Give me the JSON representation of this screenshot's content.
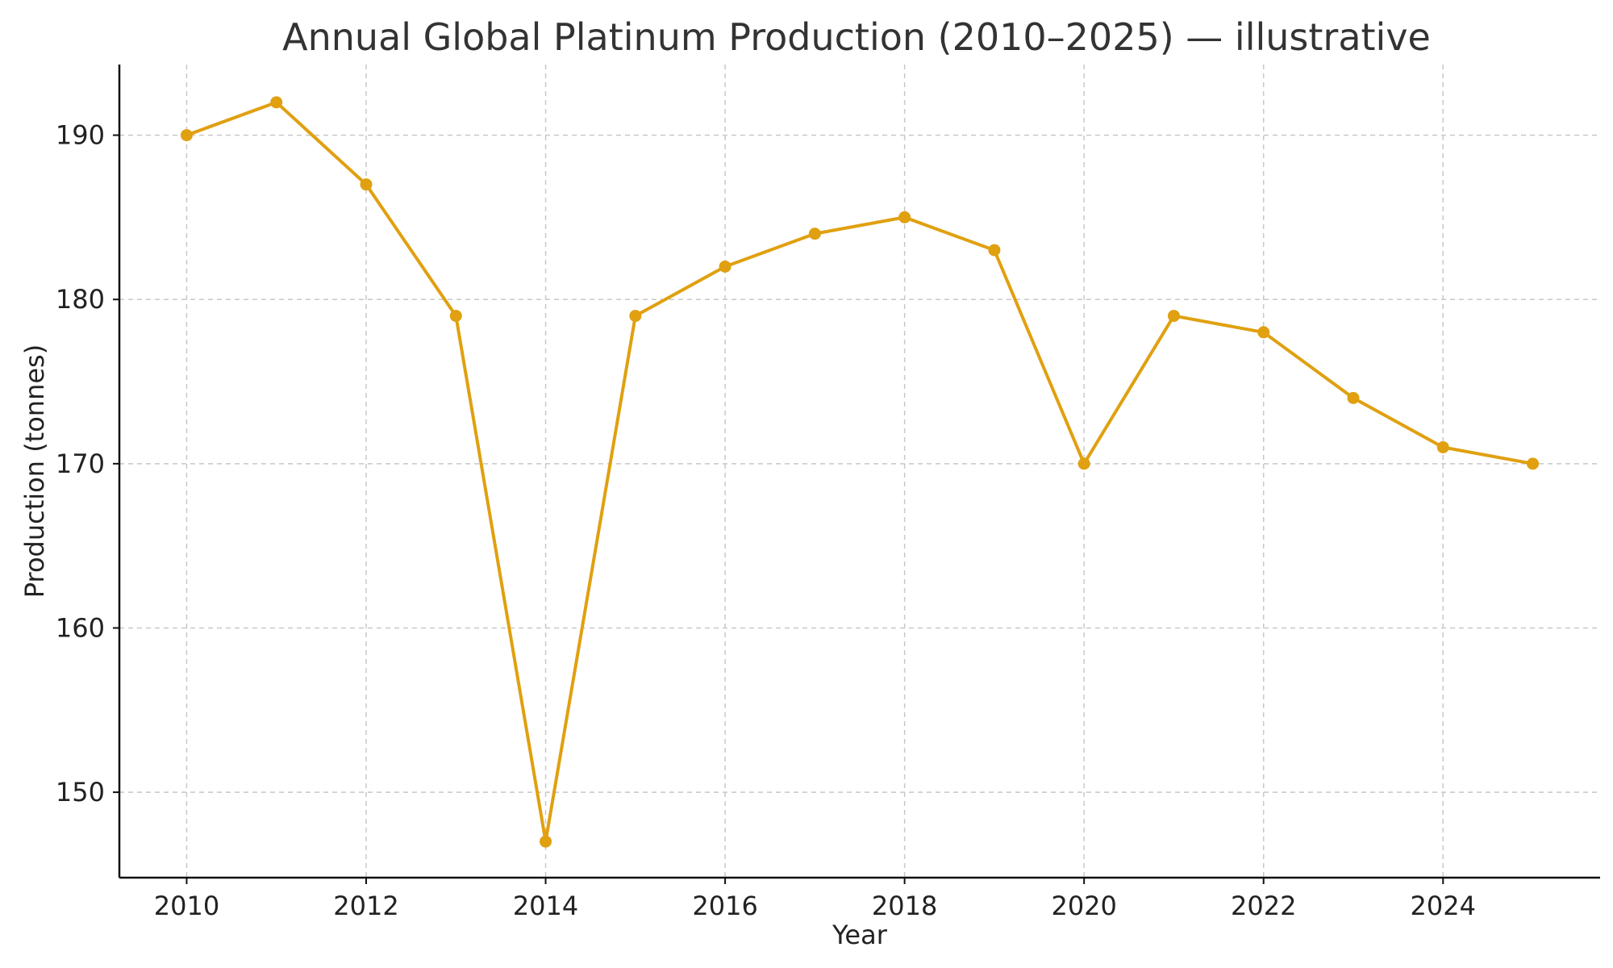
{
  "chart_data": {
    "type": "line",
    "title": "Annual Global Platinum Production (2010–2025) — illustrative",
    "xlabel": "Year",
    "ylabel": "Production (tonnes)",
    "x": [
      2010,
      2011,
      2012,
      2013,
      2014,
      2015,
      2016,
      2017,
      2018,
      2019,
      2020,
      2021,
      2022,
      2023,
      2024,
      2025
    ],
    "series": [
      {
        "values": [
          190,
          192,
          187,
          179,
          147,
          179,
          182,
          184,
          185,
          183,
          170,
          179,
          178,
          174,
          171,
          170
        ],
        "color": "#E0A010"
      }
    ],
    "xlim": [
      2009.25,
      2025.75
    ],
    "ylim": [
      144.8,
      194.3
    ],
    "xticks": [
      2010,
      2012,
      2014,
      2016,
      2018,
      2020,
      2022,
      2024
    ],
    "yticks": [
      150,
      160,
      170,
      180,
      190
    ],
    "grid": true,
    "markers": true
  }
}
